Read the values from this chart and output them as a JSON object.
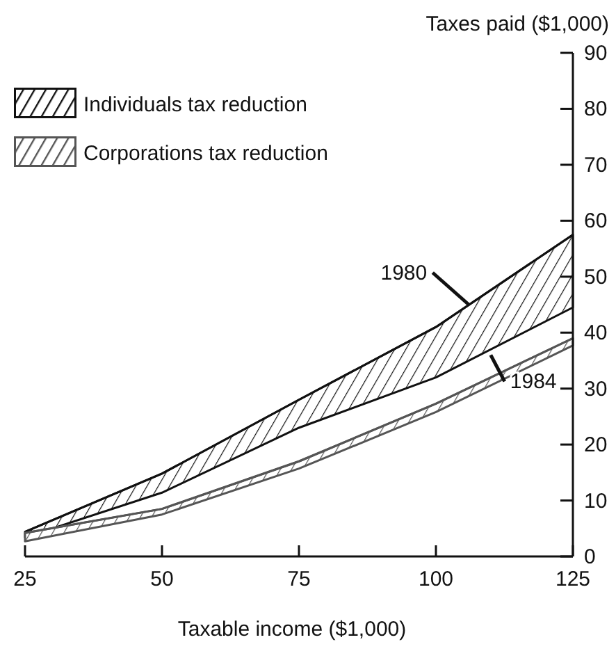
{
  "chart_data": {
    "type": "line",
    "xlabel": "Taxable income ($1,000)",
    "ylabel": "Taxes paid ($1,000)",
    "x": [
      25,
      50,
      75,
      100,
      125
    ],
    "series": [
      {
        "name": "Individuals tax reduction",
        "color": "#111111",
        "values": [
          4.4,
          14.8,
          28,
          41,
          57.5
        ],
        "lower": [
          3.4,
          11.4,
          23,
          32,
          44.5
        ],
        "upper": [
          4.4,
          14.8,
          28,
          41,
          57.5
        ]
      },
      {
        "name": "Corporations tax reduction",
        "color": "#555555",
        "values": [
          4.2,
          8.5,
          17,
          27.3,
          39
        ],
        "lower": [
          2.7,
          7.5,
          15.7,
          25.8,
          37.7
        ],
        "upper": [
          4.2,
          8.5,
          17,
          27.3,
          39
        ]
      }
    ],
    "xlim": [
      25,
      125
    ],
    "xticks": [
      25,
      50,
      75,
      100,
      125
    ],
    "ylim": [
      0,
      90
    ],
    "yticks": [
      0,
      10,
      20,
      30,
      40,
      50,
      60,
      70,
      80,
      90
    ],
    "legend": "top left",
    "grid": false,
    "annotations": [
      {
        "text": "1980",
        "x": 106,
        "y": 45
      },
      {
        "text": "1984",
        "x": 110,
        "y": 36
      }
    ]
  }
}
